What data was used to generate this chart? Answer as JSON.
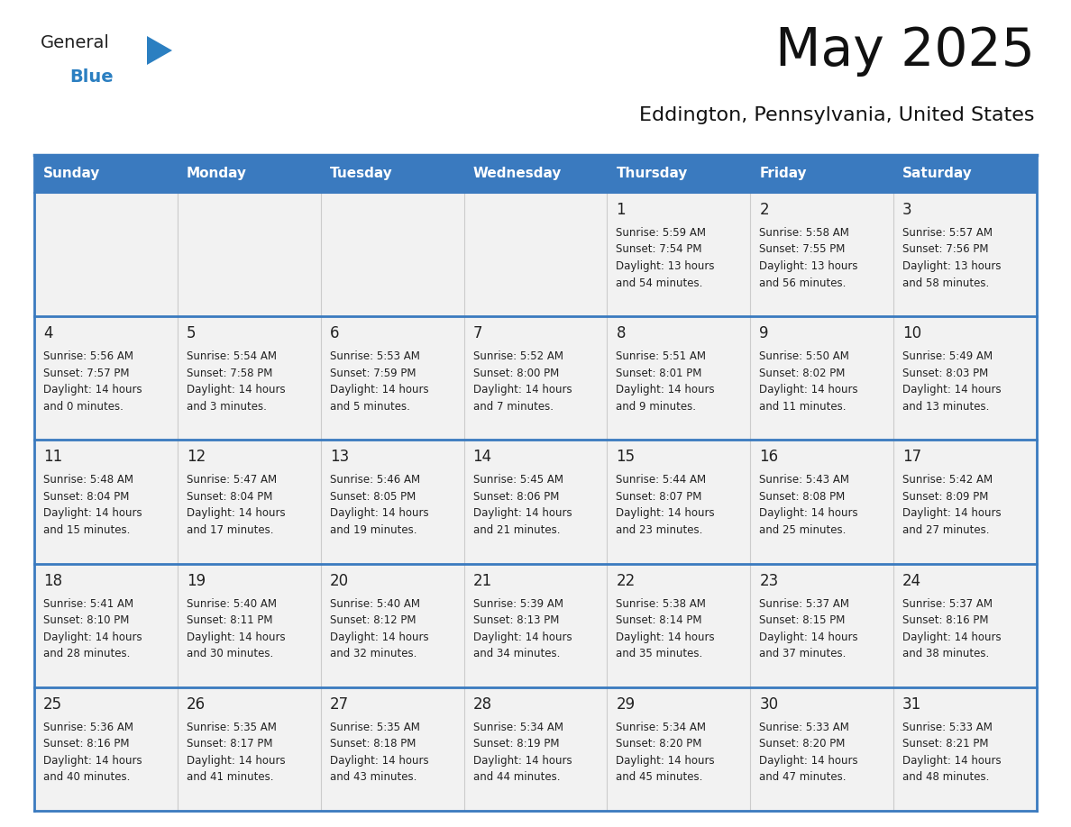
{
  "title": "May 2025",
  "subtitle": "Eddington, Pennsylvania, United States",
  "header_color": "#3a7abf",
  "header_text_color": "#ffffff",
  "cell_bg_color": "#f2f2f2",
  "border_color": "#3a7abf",
  "row_separator_color": "#3a7abf",
  "col_separator_color": "#cccccc",
  "text_color": "#222222",
  "bg_color": "#ffffff",
  "day_headers": [
    "Sunday",
    "Monday",
    "Tuesday",
    "Wednesday",
    "Thursday",
    "Friday",
    "Saturday"
  ],
  "weeks": [
    [
      {
        "day": "",
        "info": ""
      },
      {
        "day": "",
        "info": ""
      },
      {
        "day": "",
        "info": ""
      },
      {
        "day": "",
        "info": ""
      },
      {
        "day": "1",
        "info": "Sunrise: 5:59 AM\nSunset: 7:54 PM\nDaylight: 13 hours\nand 54 minutes."
      },
      {
        "day": "2",
        "info": "Sunrise: 5:58 AM\nSunset: 7:55 PM\nDaylight: 13 hours\nand 56 minutes."
      },
      {
        "day": "3",
        "info": "Sunrise: 5:57 AM\nSunset: 7:56 PM\nDaylight: 13 hours\nand 58 minutes."
      }
    ],
    [
      {
        "day": "4",
        "info": "Sunrise: 5:56 AM\nSunset: 7:57 PM\nDaylight: 14 hours\nand 0 minutes."
      },
      {
        "day": "5",
        "info": "Sunrise: 5:54 AM\nSunset: 7:58 PM\nDaylight: 14 hours\nand 3 minutes."
      },
      {
        "day": "6",
        "info": "Sunrise: 5:53 AM\nSunset: 7:59 PM\nDaylight: 14 hours\nand 5 minutes."
      },
      {
        "day": "7",
        "info": "Sunrise: 5:52 AM\nSunset: 8:00 PM\nDaylight: 14 hours\nand 7 minutes."
      },
      {
        "day": "8",
        "info": "Sunrise: 5:51 AM\nSunset: 8:01 PM\nDaylight: 14 hours\nand 9 minutes."
      },
      {
        "day": "9",
        "info": "Sunrise: 5:50 AM\nSunset: 8:02 PM\nDaylight: 14 hours\nand 11 minutes."
      },
      {
        "day": "10",
        "info": "Sunrise: 5:49 AM\nSunset: 8:03 PM\nDaylight: 14 hours\nand 13 minutes."
      }
    ],
    [
      {
        "day": "11",
        "info": "Sunrise: 5:48 AM\nSunset: 8:04 PM\nDaylight: 14 hours\nand 15 minutes."
      },
      {
        "day": "12",
        "info": "Sunrise: 5:47 AM\nSunset: 8:04 PM\nDaylight: 14 hours\nand 17 minutes."
      },
      {
        "day": "13",
        "info": "Sunrise: 5:46 AM\nSunset: 8:05 PM\nDaylight: 14 hours\nand 19 minutes."
      },
      {
        "day": "14",
        "info": "Sunrise: 5:45 AM\nSunset: 8:06 PM\nDaylight: 14 hours\nand 21 minutes."
      },
      {
        "day": "15",
        "info": "Sunrise: 5:44 AM\nSunset: 8:07 PM\nDaylight: 14 hours\nand 23 minutes."
      },
      {
        "day": "16",
        "info": "Sunrise: 5:43 AM\nSunset: 8:08 PM\nDaylight: 14 hours\nand 25 minutes."
      },
      {
        "day": "17",
        "info": "Sunrise: 5:42 AM\nSunset: 8:09 PM\nDaylight: 14 hours\nand 27 minutes."
      }
    ],
    [
      {
        "day": "18",
        "info": "Sunrise: 5:41 AM\nSunset: 8:10 PM\nDaylight: 14 hours\nand 28 minutes."
      },
      {
        "day": "19",
        "info": "Sunrise: 5:40 AM\nSunset: 8:11 PM\nDaylight: 14 hours\nand 30 minutes."
      },
      {
        "day": "20",
        "info": "Sunrise: 5:40 AM\nSunset: 8:12 PM\nDaylight: 14 hours\nand 32 minutes."
      },
      {
        "day": "21",
        "info": "Sunrise: 5:39 AM\nSunset: 8:13 PM\nDaylight: 14 hours\nand 34 minutes."
      },
      {
        "day": "22",
        "info": "Sunrise: 5:38 AM\nSunset: 8:14 PM\nDaylight: 14 hours\nand 35 minutes."
      },
      {
        "day": "23",
        "info": "Sunrise: 5:37 AM\nSunset: 8:15 PM\nDaylight: 14 hours\nand 37 minutes."
      },
      {
        "day": "24",
        "info": "Sunrise: 5:37 AM\nSunset: 8:16 PM\nDaylight: 14 hours\nand 38 minutes."
      }
    ],
    [
      {
        "day": "25",
        "info": "Sunrise: 5:36 AM\nSunset: 8:16 PM\nDaylight: 14 hours\nand 40 minutes."
      },
      {
        "day": "26",
        "info": "Sunrise: 5:35 AM\nSunset: 8:17 PM\nDaylight: 14 hours\nand 41 minutes."
      },
      {
        "day": "27",
        "info": "Sunrise: 5:35 AM\nSunset: 8:18 PM\nDaylight: 14 hours\nand 43 minutes."
      },
      {
        "day": "28",
        "info": "Sunrise: 5:34 AM\nSunset: 8:19 PM\nDaylight: 14 hours\nand 44 minutes."
      },
      {
        "day": "29",
        "info": "Sunrise: 5:34 AM\nSunset: 8:20 PM\nDaylight: 14 hours\nand 45 minutes."
      },
      {
        "day": "30",
        "info": "Sunrise: 5:33 AM\nSunset: 8:20 PM\nDaylight: 14 hours\nand 47 minutes."
      },
      {
        "day": "31",
        "info": "Sunrise: 5:33 AM\nSunset: 8:21 PM\nDaylight: 14 hours\nand 48 minutes."
      }
    ]
  ],
  "logo_general_color": "#222222",
  "logo_blue_color": "#2b7fc1",
  "logo_triangle_color": "#2b7fc1"
}
